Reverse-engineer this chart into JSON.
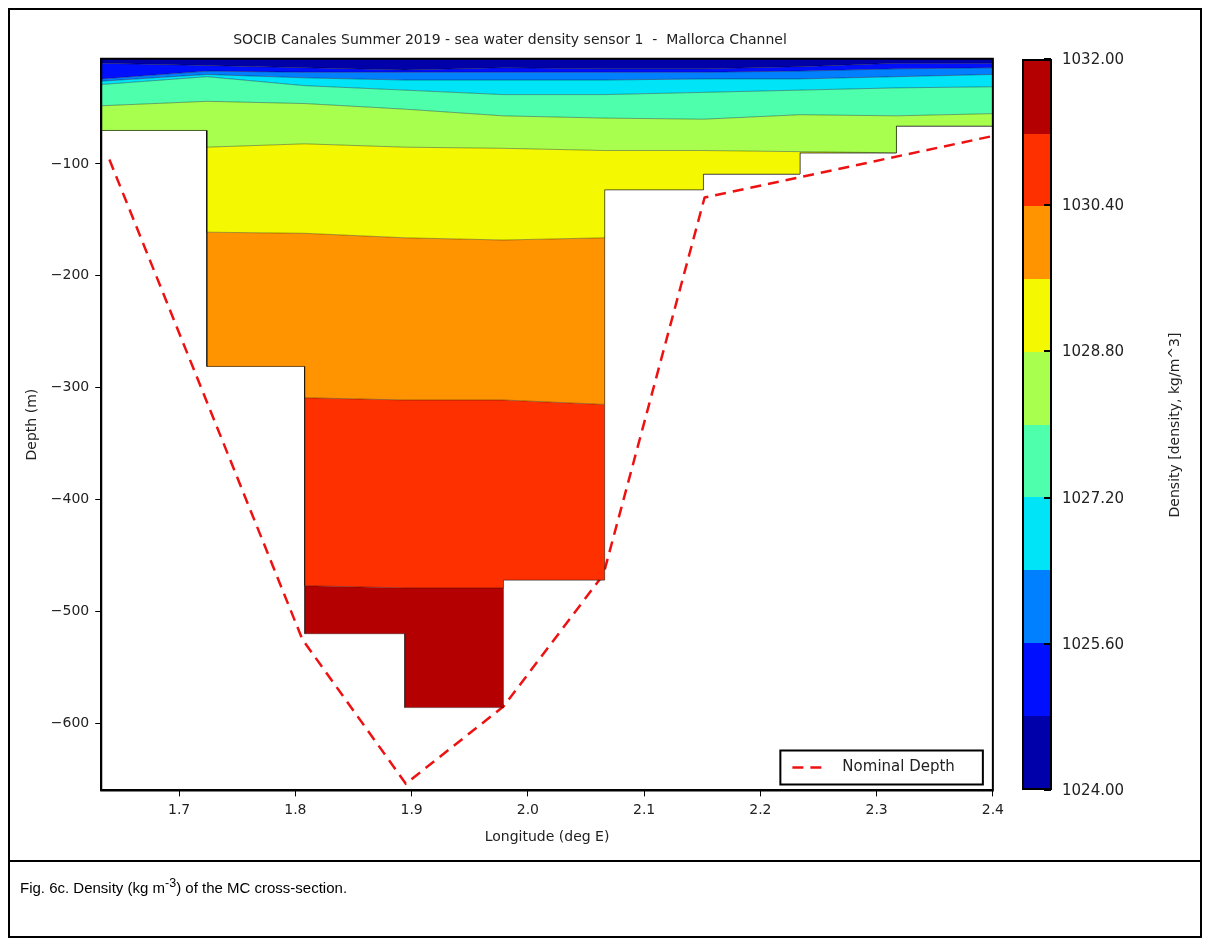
{
  "chart_data": {
    "type": "area",
    "title": "SOCIB Canales Summer 2019 - sea water density sensor 1  -  Mallorca Channel",
    "xlabel": "Longitude (deg E)",
    "ylabel": "Depth (m)",
    "clabel": "Density [density, kg/m^3]",
    "x": [
      1.633,
      1.724,
      1.724,
      1.808,
      1.808,
      1.894,
      1.894,
      1.979,
      1.979,
      2.066,
      2.066,
      2.151,
      2.151,
      2.234,
      2.234,
      2.317,
      2.317,
      2.4
    ],
    "xlim": [
      1.633,
      2.4
    ],
    "xticks": [
      1.7,
      1.8,
      1.9,
      {
        "value": 2,
        "label": "2.0"
      },
      2.1,
      2.2,
      2.3,
      2.4
    ],
    "ylim": [
      -660,
      -6
    ],
    "yticks": [
      {
        "value": -100,
        "label": "−100"
      },
      {
        "value": -200,
        "label": "−200"
      },
      {
        "value": -300,
        "label": "−300"
      },
      {
        "value": -400,
        "label": "−400"
      },
      {
        "value": -500,
        "label": "−500"
      },
      {
        "value": -600,
        "label": "−600"
      }
    ],
    "clim": [
      1024,
      1032
    ],
    "cticks": [
      {
        "value": 1024,
        "label": "1024.00"
      },
      {
        "value": 1025.6,
        "label": "1025.60"
      },
      {
        "value": 1027.2,
        "label": "1027.20"
      },
      {
        "value": 1028.8,
        "label": "1028.80"
      },
      {
        "value": 1030.4,
        "label": "1030.40"
      },
      {
        "value": 1032,
        "label": "1032.00"
      }
    ],
    "series": [
      {
        "color": "#0000aa",
        "values": [
          -10,
          -12,
          -12,
          -14,
          -14,
          -16,
          -16,
          -14,
          -14,
          -15,
          -15,
          -15,
          -15,
          -13,
          -13,
          -10,
          -10,
          -10
        ]
      },
      {
        "color": "#0010ff",
        "values": [
          -24,
          -17,
          -17,
          -18,
          -18,
          -18,
          -18,
          -18,
          -18,
          -18,
          -18,
          -18,
          -18,
          -17,
          -17,
          -15,
          -15,
          -14
        ]
      },
      {
        "color": "#0080ff",
        "values": [
          -26,
          -20,
          -20,
          -23,
          -23,
          -25,
          -25,
          -25,
          -25,
          -25,
          -25,
          -24,
          -24,
          -24,
          -24,
          -22,
          -22,
          -20
        ]
      },
      {
        "color": "#00e4f8",
        "values": [
          -29,
          -22,
          -22,
          -30,
          -30,
          -34,
          -34,
          -38,
          -38,
          -38,
          -38,
          -36,
          -36,
          -34,
          -34,
          -32,
          -32,
          -31
        ]
      },
      {
        "color": "#4effac",
        "values": [
          -48,
          -44,
          -44,
          -46,
          -46,
          -51,
          -51,
          -57,
          -57,
          -59,
          -59,
          -60,
          -60,
          -56,
          -56,
          -57,
          -57,
          -55
        ]
      },
      {
        "color": "#a9ff4e",
        "values": [
          -70,
          -70,
          -85,
          -82,
          -82,
          -85,
          -85,
          -86,
          -86,
          -88,
          -88,
          -88,
          -88,
          -89,
          -89,
          -90,
          -66,
          -66
        ]
      },
      {
        "color": "#f4f800",
        "values": [
          -70,
          -70,
          -161,
          -162,
          -162,
          -166,
          -166,
          -168,
          -168,
          -166,
          -123,
          -123,
          -109,
          -109,
          -90,
          -90,
          -66,
          -66
        ]
      },
      {
        "color": "#ff9400",
        "values": [
          -70,
          -70,
          -281,
          -281,
          -309,
          -311,
          -311,
          -311,
          -311,
          -315,
          -123,
          -123,
          -109,
          -109,
          -90,
          -90,
          -66,
          -66
        ]
      },
      {
        "color": "#ff3000",
        "values": [
          -70,
          -70,
          -281,
          -281,
          -477,
          -479,
          -479,
          -479,
          -472,
          -472,
          -123,
          -123,
          -109,
          -109,
          -90,
          -90,
          -66,
          -66
        ]
      },
      {
        "color": "#b40000",
        "values": [
          -70,
          -70,
          -281,
          -281,
          -520,
          -520,
          -586,
          -586,
          -472,
          -472,
          -123,
          -123,
          -109,
          -109,
          -90,
          -90,
          -66,
          -66
        ]
      },
      {
        "type": "line",
        "name": "Nominal Depth",
        "color": "#ee1111",
        "line_style": "dashed",
        "x": [
          1.64,
          1.806,
          1.895,
          1.979,
          2.065,
          2.152,
          2.4
        ],
        "values": [
          -96,
          -525,
          -654,
          -585,
          -467,
          -130,
          -75
        ]
      }
    ],
    "legend": "bottom right",
    "grid": false,
    "annotations": [
      "Fig. 6c. Density (kg m$^{-3}$) of the MC cross-section."
    ]
  }
}
